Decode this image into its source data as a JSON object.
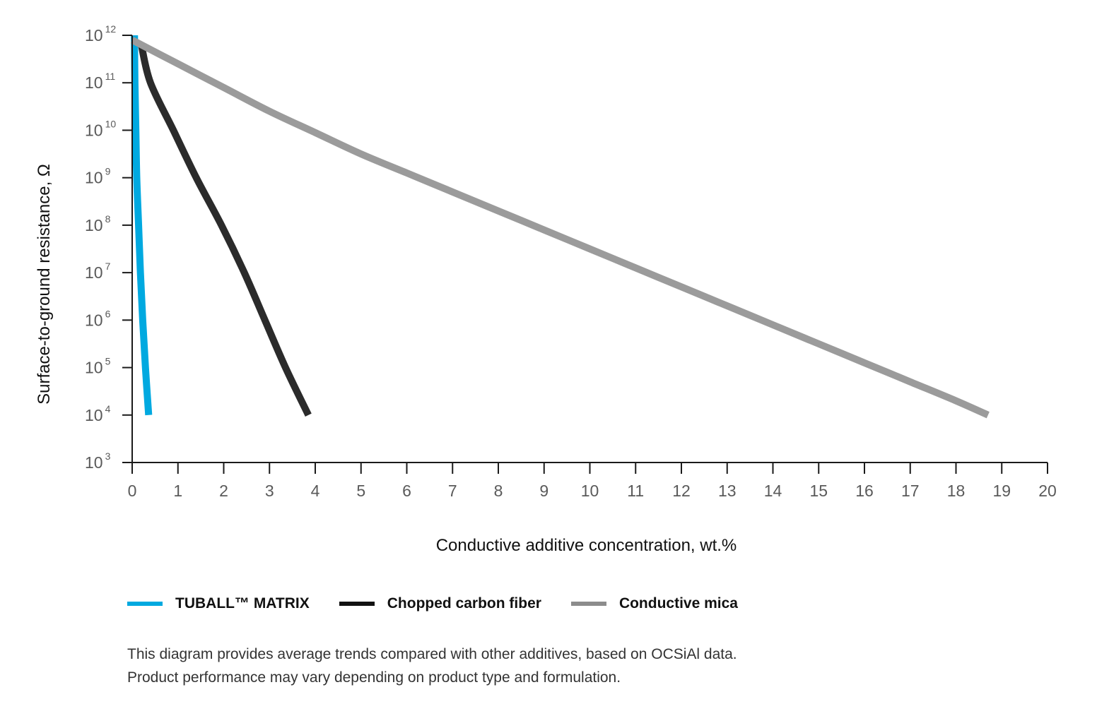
{
  "chart_data": {
    "type": "line",
    "xlabel": "Conductive additive concentration, wt.%",
    "ylabel": "Surface-to-ground resistance, Ω",
    "x_ticks": [
      "0",
      "1",
      "2",
      "3",
      "4",
      "5",
      "6",
      "7",
      "8",
      "9",
      "10",
      "11",
      "12",
      "13",
      "14",
      "15",
      "16",
      "17",
      "18",
      "19",
      "20"
    ],
    "y_ticks": [
      {
        "base": "10",
        "exp": "3",
        "value": 3
      },
      {
        "base": "10",
        "exp": "4",
        "value": 4
      },
      {
        "base": "10",
        "exp": "5",
        "value": 5
      },
      {
        "base": "10",
        "exp": "6",
        "value": 6
      },
      {
        "base": "10",
        "exp": "7",
        "value": 7
      },
      {
        "base": "10",
        "exp": "8",
        "value": 8
      },
      {
        "base": "10",
        "exp": "9",
        "value": 9
      },
      {
        "base": "10",
        "exp": "10",
        "value": 10
      },
      {
        "base": "10",
        "exp": "11",
        "value": 11
      },
      {
        "base": "10",
        "exp": "12",
        "value": 12
      }
    ],
    "xlim": [
      0,
      20
    ],
    "ylim_log10": [
      3,
      12
    ],
    "y_scale": "log",
    "grid": false,
    "legend_position": "bottom-left",
    "series": [
      {
        "name": "TUBALL™ MATRIX",
        "color": "#00a9e0",
        "points_log10": [
          [
            0.05,
            12
          ],
          [
            0.06,
            11
          ],
          [
            0.08,
            10
          ],
          [
            0.1,
            9
          ],
          [
            0.14,
            8
          ],
          [
            0.18,
            7
          ],
          [
            0.23,
            6
          ],
          [
            0.29,
            5
          ],
          [
            0.36,
            4
          ]
        ]
      },
      {
        "name": "Chopped carbon fiber",
        "color": "#2b2b2b",
        "points_log10": [
          [
            0.2,
            11.8
          ],
          [
            0.4,
            11
          ],
          [
            0.9,
            10
          ],
          [
            1.4,
            9
          ],
          [
            1.95,
            8
          ],
          [
            2.45,
            7
          ],
          [
            2.9,
            6
          ],
          [
            3.35,
            5
          ],
          [
            3.85,
            4
          ]
        ]
      },
      {
        "name": "Conductive mica",
        "color": "#9b9b9b",
        "points_log10": [
          [
            0,
            11.9
          ],
          [
            1,
            11.4
          ],
          [
            2,
            10.9
          ],
          [
            3,
            10.4
          ],
          [
            4,
            9.95
          ],
          [
            5,
            9.5
          ],
          [
            6,
            9.1
          ],
          [
            7,
            8.7
          ],
          [
            8,
            8.3
          ],
          [
            9,
            7.9
          ],
          [
            10,
            7.5
          ],
          [
            11,
            7.1
          ],
          [
            12,
            6.7
          ],
          [
            13,
            6.3
          ],
          [
            14,
            5.9
          ],
          [
            15,
            5.5
          ],
          [
            16,
            5.1
          ],
          [
            17,
            4.7
          ],
          [
            18,
            4.3
          ],
          [
            18.7,
            4
          ]
        ]
      }
    ]
  },
  "legend": {
    "items": [
      {
        "label": "TUBALL™  MATRIX",
        "color": "#00a9e0"
      },
      {
        "label": "Chopped carbon fiber",
        "color": "#111111"
      },
      {
        "label": "Conductive mica",
        "color": "#8c8c8c"
      }
    ]
  },
  "note": {
    "line1": "This diagram provides average trends compared with other additives, based on OCSiAl data.",
    "line2": "Product performance may vary depending on product type and formulation."
  }
}
